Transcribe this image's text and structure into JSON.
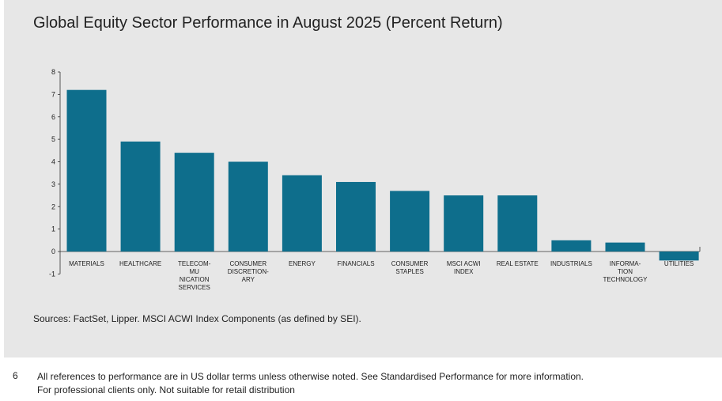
{
  "chart_data": {
    "type": "bar",
    "title": "Global Equity Sector Performance in August 2025 (Percent Return)",
    "categories": [
      "MATERIALS",
      "HEALTHCARE",
      "TELECOM-\nMU\nNICATION\nSERVICES",
      "CONSUMER\nDISCRETION-\nARY",
      "ENERGY",
      "FINANCIALS",
      "CONSUMER\nSTAPLES",
      "MSCI ACWI\nINDEX",
      "REAL ESTATE",
      "INDUSTRIALS",
      "INFORMA-\nTION\nTECHNOLOGY",
      "UTILITIES"
    ],
    "values": [
      7.2,
      4.9,
      4.4,
      4.0,
      3.4,
      3.1,
      2.7,
      2.5,
      2.5,
      0.5,
      0.4,
      -0.4
    ],
    "ylim": [
      -1,
      8
    ],
    "yticks": [
      -1,
      0,
      1,
      2,
      3,
      4,
      5,
      6,
      7,
      8
    ],
    "bar_color": "#0e6e8c",
    "xlabel": "",
    "ylabel": "",
    "grid": false
  },
  "source_note": "Sources: FactSet, Lipper. MSCI ACWI Index Components (as defined by SEI).",
  "footer": {
    "page_number": "6",
    "line1": "All references to performance are in US dollar terms unless otherwise noted. See Standardised Performance for more information.",
    "line2": "For professional clients only. Not suitable for retail distribution"
  }
}
